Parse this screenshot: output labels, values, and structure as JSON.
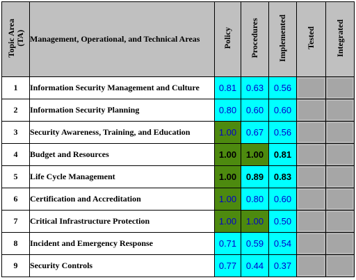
{
  "header": {
    "topic_area": "Topic Area\n(TA)",
    "areas": "Management, Operational, and Technical Areas",
    "columns": [
      "Policy",
      "Procedures",
      "Implemented",
      "Tested",
      "Integrated"
    ]
  },
  "colors": {
    "header_bg": "#c0c0c0",
    "cyan": "#00ffff",
    "green": "#4d8a0f",
    "gray": "#a6a6a6",
    "blue_text": "#0000cc"
  },
  "rows": [
    {
      "num": "1",
      "area": "Information Security Management and Culture",
      "values": [
        {
          "text": "0.81",
          "style": "cyan"
        },
        {
          "text": "0.63",
          "style": "cyan"
        },
        {
          "text": "0.56",
          "style": "cyan"
        }
      ]
    },
    {
      "num": "2",
      "area": "Information Security Planning",
      "values": [
        {
          "text": "0.80",
          "style": "cyan"
        },
        {
          "text": "0.60",
          "style": "cyan"
        },
        {
          "text": "0.60",
          "style": "cyan"
        }
      ]
    },
    {
      "num": "3",
      "area": "Security Awareness, Training, and Education",
      "values": [
        {
          "text": "1.00",
          "style": "green"
        },
        {
          "text": "0.67",
          "style": "cyan"
        },
        {
          "text": "0.56",
          "style": "cyan"
        }
      ]
    },
    {
      "num": "4",
      "area": "Budget and Resources",
      "values": [
        {
          "text": "1.00",
          "style": "green-bold"
        },
        {
          "text": "1.00",
          "style": "green-bold"
        },
        {
          "text": "0.81",
          "style": "cyan-bold"
        }
      ]
    },
    {
      "num": "5",
      "area": "Life Cycle Management",
      "values": [
        {
          "text": "1.00",
          "style": "green-bold"
        },
        {
          "text": "0.89",
          "style": "cyan-bold"
        },
        {
          "text": "0.83",
          "style": "cyan-bold"
        }
      ]
    },
    {
      "num": "6",
      "area": "Certification and Accreditation",
      "values": [
        {
          "text": "1.00",
          "style": "green"
        },
        {
          "text": "0.80",
          "style": "cyan"
        },
        {
          "text": "0.60",
          "style": "cyan"
        }
      ]
    },
    {
      "num": "7",
      "area": "Critical Infrastructure Protection",
      "values": [
        {
          "text": "1.00",
          "style": "green"
        },
        {
          "text": "1.00",
          "style": "green"
        },
        {
          "text": "0.50",
          "style": "cyan"
        }
      ]
    },
    {
      "num": "8",
      "area": "Incident and Emergency Response",
      "values": [
        {
          "text": "0.71",
          "style": "cyan"
        },
        {
          "text": "0.59",
          "style": "cyan"
        },
        {
          "text": "0.54",
          "style": "cyan"
        }
      ]
    },
    {
      "num": "9",
      "area": "Security Controls",
      "values": [
        {
          "text": "0.77",
          "style": "cyan"
        },
        {
          "text": "0.44",
          "style": "cyan"
        },
        {
          "text": "0.37",
          "style": "cyan"
        }
      ]
    }
  ]
}
